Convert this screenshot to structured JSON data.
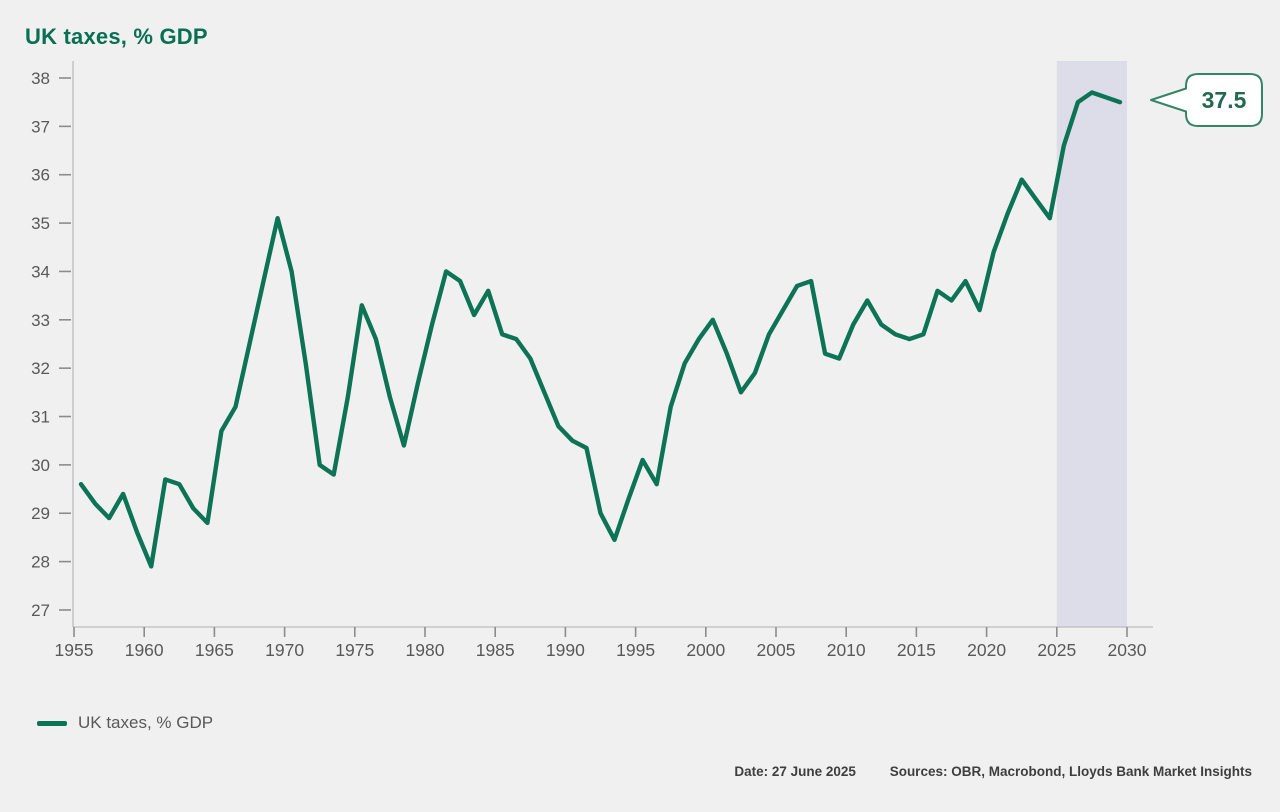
{
  "title": "UK taxes, % GDP",
  "legend": {
    "label": "UK taxes, % GDP"
  },
  "footer": {
    "date": "Date: 27 June 2025",
    "sources": "Sources: OBR, Macrobond, Lloyds Bank Market Insights"
  },
  "colors": {
    "background": "#f0f0f1",
    "line": "#0d7355",
    "title": "#086f52",
    "axis": "#bdbdbf",
    "tick": "#8c8c8c",
    "tick_label": "#595959",
    "forecast_band": "#dcdde9",
    "callout_border": "#338566",
    "callout_text": "#23684f",
    "callout_fill": "#ffffff"
  },
  "chart_data": {
    "type": "line",
    "title": "UK taxes, % GDP",
    "xlabel": "",
    "ylabel": "UK taxes, % GDP",
    "ylim": [
      27,
      38
    ],
    "xlim": [
      1955,
      2030
    ],
    "yticks": [
      27,
      28,
      29,
      30,
      31,
      32,
      33,
      34,
      35,
      36,
      37,
      38
    ],
    "xticks": [
      1955,
      1960,
      1965,
      1970,
      1975,
      1980,
      1985,
      1990,
      1995,
      2000,
      2005,
      2010,
      2015,
      2020,
      2025,
      2030
    ],
    "grid": false,
    "legend_position": "bottom-left",
    "forecast_band": {
      "from": 2025,
      "to": 2030
    },
    "callout": {
      "label": "37.5",
      "points_to_year": 2029,
      "points_to_value": 37.5
    },
    "series": [
      {
        "name": "UK taxes, % GDP",
        "years": [
          1955,
          1956,
          1957,
          1958,
          1959,
          1960,
          1961,
          1962,
          1963,
          1964,
          1965,
          1966,
          1967,
          1968,
          1969,
          1970,
          1971,
          1972,
          1973,
          1974,
          1975,
          1976,
          1977,
          1978,
          1979,
          1980,
          1981,
          1982,
          1983,
          1984,
          1985,
          1986,
          1987,
          1988,
          1989,
          1990,
          1991,
          1992,
          1993,
          1994,
          1995,
          1996,
          1997,
          1998,
          1999,
          2000,
          2001,
          2002,
          2003,
          2004,
          2005,
          2006,
          2007,
          2008,
          2009,
          2010,
          2011,
          2012,
          2013,
          2014,
          2015,
          2016,
          2017,
          2018,
          2019,
          2020,
          2021,
          2022,
          2023,
          2024,
          2025,
          2026,
          2027,
          2028,
          2029
        ],
        "values": [
          29.6,
          29.2,
          28.9,
          29.4,
          28.6,
          27.9,
          29.7,
          29.6,
          29.1,
          28.8,
          30.7,
          31.2,
          32.5,
          33.8,
          35.1,
          34.0,
          32.1,
          30.0,
          29.8,
          31.4,
          33.3,
          32.6,
          31.4,
          30.4,
          31.7,
          32.9,
          34.0,
          33.8,
          33.1,
          33.6,
          32.7,
          32.6,
          32.2,
          31.5,
          30.8,
          30.5,
          30.35,
          29.0,
          28.45,
          29.3,
          30.1,
          29.6,
          31.2,
          32.1,
          32.6,
          33.0,
          32.3,
          31.5,
          31.9,
          32.7,
          33.2,
          33.7,
          33.8,
          32.3,
          32.2,
          32.9,
          33.4,
          32.9,
          32.7,
          32.6,
          32.7,
          33.6,
          33.4,
          33.8,
          33.2,
          34.4,
          35.2,
          35.9,
          35.5,
          35.1,
          36.6,
          37.5,
          37.7,
          37.6,
          37.5
        ]
      }
    ]
  }
}
